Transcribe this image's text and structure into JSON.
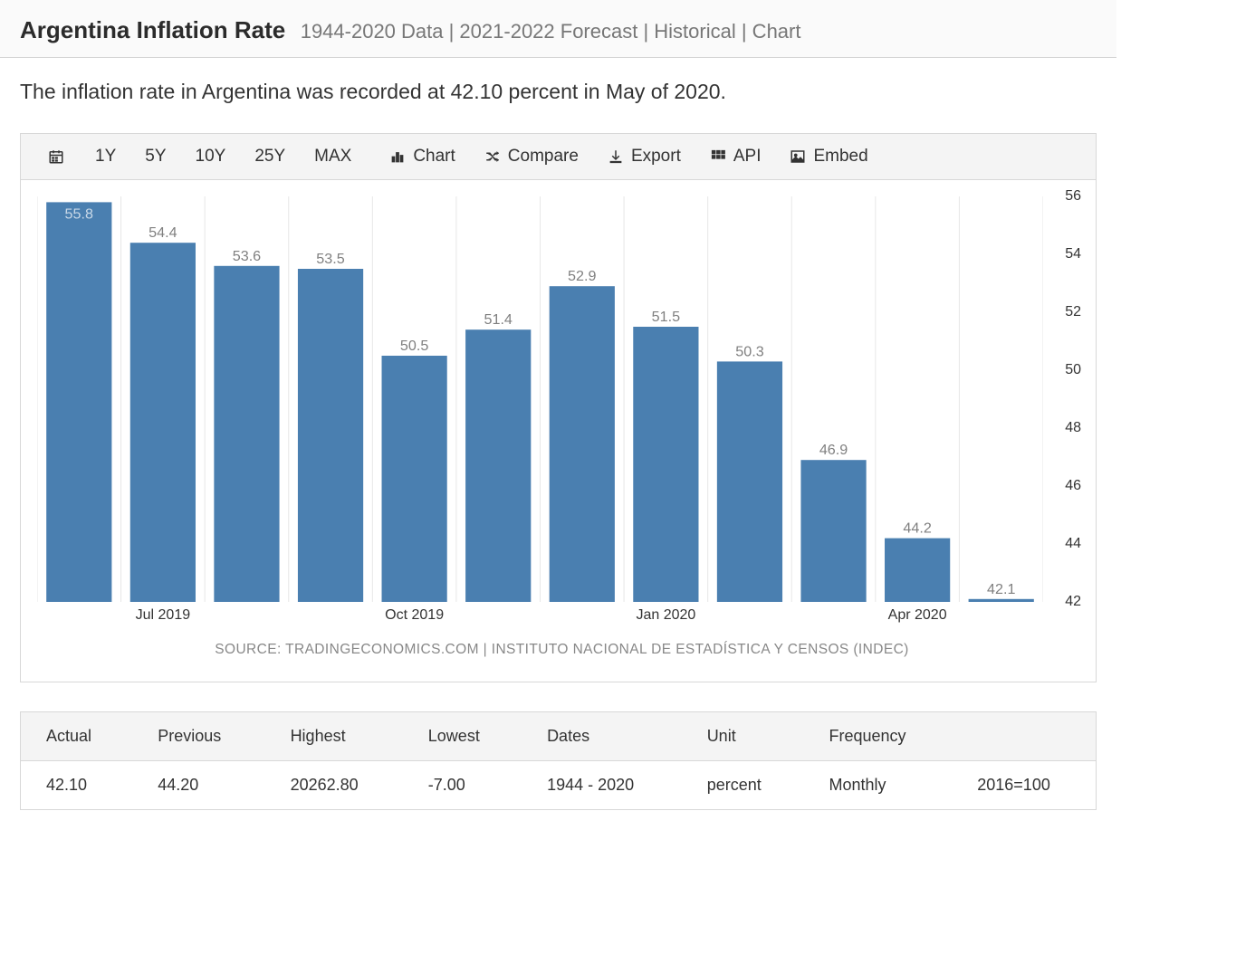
{
  "header": {
    "title": "Argentina Inflation Rate",
    "subtitle": "1944-2020 Data | 2021-2022 Forecast | Historical | Chart"
  },
  "intro": "The inflation rate in Argentina was recorded at 42.10 percent in May of 2020.",
  "toolbar": {
    "ranges": [
      "1Y",
      "5Y",
      "10Y",
      "25Y",
      "MAX"
    ],
    "chart": "Chart",
    "compare": "Compare",
    "export": "Export",
    "api": "API",
    "embed": "Embed"
  },
  "chart": {
    "type": "bar",
    "bar_color": "#4a7fb0",
    "background_color": "#ffffff",
    "grid_color": "#e7e7e7",
    "label_color": "#808080",
    "label_fontsize": 16,
    "y": {
      "min": 42,
      "max": 56,
      "ticks": [
        42,
        44,
        46,
        48,
        50,
        52,
        54,
        56
      ]
    },
    "x_labels": [
      {
        "label": "Jul 2019",
        "at_index": 1
      },
      {
        "label": "Oct 2019",
        "at_index": 4
      },
      {
        "label": "Jan 2020",
        "at_index": 7
      },
      {
        "label": "Apr 2020",
        "at_index": 10
      }
    ],
    "values": [
      55.8,
      54.4,
      53.6,
      53.5,
      50.5,
      51.4,
      52.9,
      51.5,
      50.3,
      46.9,
      44.2,
      42.1
    ],
    "bar_width_ratio": 0.78
  },
  "source": "SOURCE: TRADINGECONOMICS.COM | INSTITUTO NACIONAL DE ESTADÍSTICA Y CENSOS (INDEC)",
  "table": {
    "columns": [
      "Actual",
      "Previous",
      "Highest",
      "Lowest",
      "Dates",
      "Unit",
      "Frequency",
      ""
    ],
    "row": [
      "42.10",
      "44.20",
      "20262.80",
      "-7.00",
      "1944 - 2020",
      "percent",
      "Monthly",
      "2016=100"
    ]
  }
}
